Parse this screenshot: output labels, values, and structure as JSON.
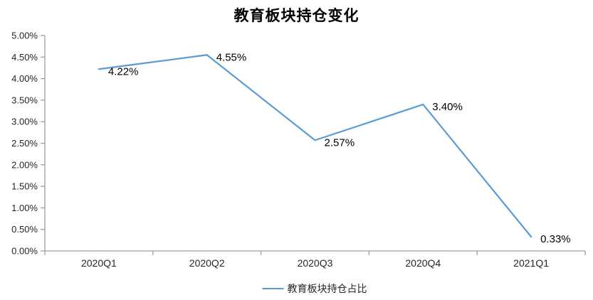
{
  "chart_data": {
    "type": "line",
    "title": "教育板块持仓变化",
    "categories": [
      "2020Q1",
      "2020Q2",
      "2020Q3",
      "2020Q4",
      "2021Q1"
    ],
    "series": [
      {
        "name": "教育板块持仓占比",
        "values": [
          4.22,
          4.55,
          2.57,
          3.4,
          0.33
        ],
        "data_labels": [
          "4.22%",
          "4.55%",
          "2.57%",
          "3.40%",
          "0.33%"
        ]
      }
    ],
    "legend": "教育板块持仓占比",
    "legend_position": "bottom",
    "y_ticks": [
      "0.00%",
      "0.50%",
      "1.00%",
      "1.50%",
      "2.00%",
      "2.50%",
      "3.00%",
      "3.50%",
      "4.00%",
      "4.50%",
      "5.00%"
    ],
    "ylim": [
      0,
      5
    ],
    "xlabel": "",
    "ylabel": "",
    "grid": false,
    "line_color": "#5B9BD5",
    "axis_color": "#9e9e9e",
    "text_color": "#262626",
    "data_label_color": "#000000"
  }
}
